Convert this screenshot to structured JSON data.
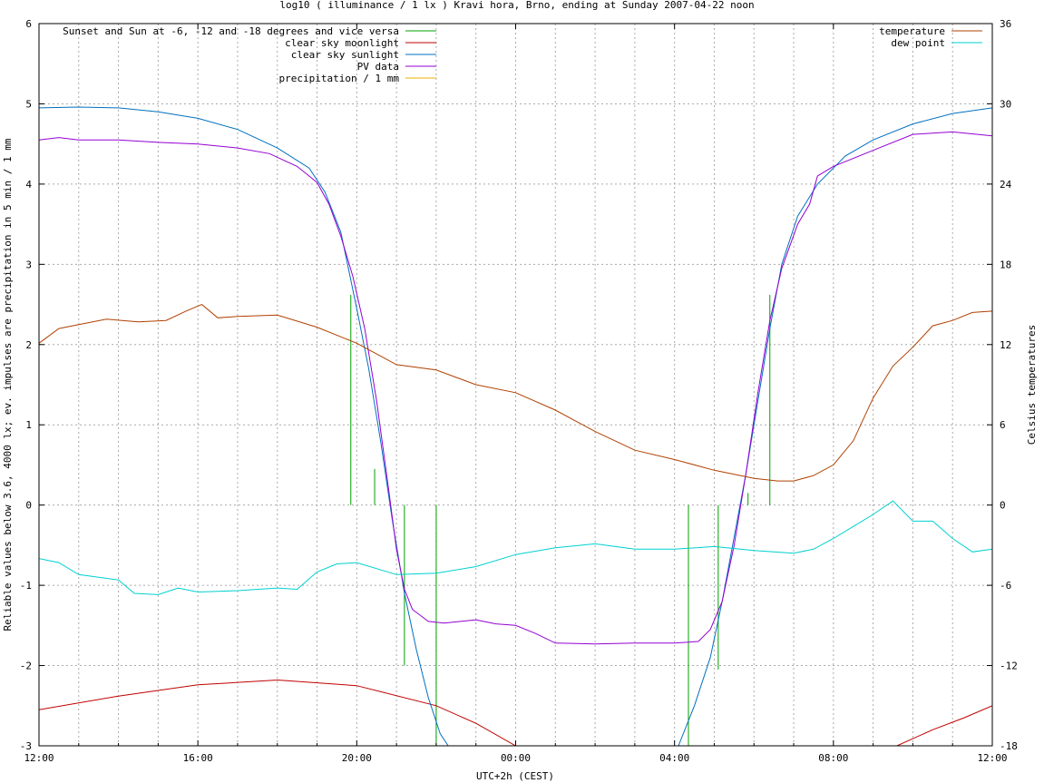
{
  "chart_data": {
    "type": "line",
    "title": "log10 ( illuminance / 1 lx ) Kravi hora, Brno, ending at Sunday 2007-04-22 noon",
    "xlabel": "UTC+2h (CEST)",
    "ylabel": "Reliable values below 3.6, 4000 lx; ev. impulses are precipitation in 5 min / 1 mm",
    "y2label": "Celsius temperatures",
    "xlim": [
      0,
      24
    ],
    "ylim": [
      -3,
      6
    ],
    "y2lim": [
      -18,
      36
    ],
    "x_ticks": [
      {
        "v": 0,
        "label": "12:00"
      },
      {
        "v": 4,
        "label": "16:00"
      },
      {
        "v": 8,
        "label": "20:00"
      },
      {
        "v": 12,
        "label": "00:00"
      },
      {
        "v": 16,
        "label": "04:00"
      },
      {
        "v": 20,
        "label": "08:00"
      },
      {
        "v": 24,
        "label": "12:00"
      }
    ],
    "y_ticks": [
      {
        "v": -3,
        "label": "-3"
      },
      {
        "v": -2,
        "label": "-2"
      },
      {
        "v": -1,
        "label": "-1"
      },
      {
        "v": 0,
        "label": "0"
      },
      {
        "v": 1,
        "label": "1"
      },
      {
        "v": 2,
        "label": "2"
      },
      {
        "v": 3,
        "label": "3"
      },
      {
        "v": 4,
        "label": "4"
      },
      {
        "v": 5,
        "label": "5"
      },
      {
        "v": 6,
        "label": "6"
      }
    ],
    "y2_ticks": [
      {
        "v": -18,
        "label": "-18"
      },
      {
        "v": -12,
        "label": "-12"
      },
      {
        "v": -6,
        "label": "-6"
      },
      {
        "v": 0,
        "label": "0"
      },
      {
        "v": 6,
        "label": "6"
      },
      {
        "v": 12,
        "label": "12"
      },
      {
        "v": 18,
        "label": "18"
      },
      {
        "v": 24,
        "label": "24"
      },
      {
        "v": 30,
        "label": "30"
      },
      {
        "v": 36,
        "label": "36"
      }
    ],
    "grid": true,
    "legend_left": [
      {
        "name": "Sunset and Sun at -6, -12 and -18 degrees and vice versa",
        "color": "#00a000"
      },
      {
        "name": "clear sky moonlight",
        "color": "#c00000"
      },
      {
        "name": "clear sky sunlight",
        "color": "#0070c0"
      },
      {
        "name": "PV data",
        "color": "#9400d3"
      },
      {
        "name": "precipitation / 1 mm",
        "color": "#e8b000"
      }
    ],
    "legend_right": [
      {
        "name": "temperature",
        "color": "#b04000"
      },
      {
        "name": "dew point",
        "color": "#00d0d0"
      }
    ],
    "series": [
      {
        "name": "Sunset and Sun at -6, -12 and -18 degrees and vice versa",
        "color": "#00a000",
        "style": "impulses",
        "axis": "y1",
        "impulses": [
          {
            "x": 7.85,
            "y": 2.62
          },
          {
            "x": 8.45,
            "y": 0.45
          },
          {
            "x": 9.2,
            "y": -2.0
          },
          {
            "x": 10.0,
            "y": -3.0
          },
          {
            "x": 16.35,
            "y": -3.0
          },
          {
            "x": 17.1,
            "y": -2.05
          },
          {
            "x": 17.85,
            "y": 0.15
          },
          {
            "x": 18.4,
            "y": 2.62
          }
        ]
      },
      {
        "name": "clear sky moonlight",
        "color": "#c00000",
        "axis": "y1",
        "points": [
          [
            0,
            -2.55
          ],
          [
            2,
            -2.38
          ],
          [
            4,
            -2.24
          ],
          [
            6,
            -2.18
          ],
          [
            8,
            -2.25
          ],
          [
            10,
            -2.5
          ],
          [
            11,
            -2.72
          ],
          [
            12,
            -3.0
          ],
          [
            21.6,
            -3.0
          ],
          [
            22.5,
            -2.8
          ],
          [
            23.3,
            -2.65
          ],
          [
            24,
            -2.5
          ]
        ]
      },
      {
        "name": "clear sky sunlight",
        "color": "#0070c0",
        "axis": "y1",
        "points": [
          [
            0,
            4.95
          ],
          [
            1,
            4.96
          ],
          [
            2,
            4.95
          ],
          [
            3,
            4.9
          ],
          [
            4,
            4.82
          ],
          [
            5,
            4.68
          ],
          [
            6,
            4.45
          ],
          [
            6.8,
            4.2
          ],
          [
            7.2,
            3.9
          ],
          [
            7.6,
            3.4
          ],
          [
            8.0,
            2.45
          ],
          [
            8.3,
            1.7
          ],
          [
            8.6,
            0.8
          ],
          [
            8.9,
            -0.2
          ],
          [
            9.2,
            -1.1
          ],
          [
            9.5,
            -1.8
          ],
          [
            9.8,
            -2.4
          ],
          [
            10.1,
            -2.85
          ],
          [
            10.3,
            -3.0
          ],
          [
            16.1,
            -3.0
          ],
          [
            16.5,
            -2.5
          ],
          [
            16.9,
            -1.9
          ],
          [
            17.2,
            -1.2
          ],
          [
            17.5,
            -0.4
          ],
          [
            17.8,
            0.4
          ],
          [
            18.1,
            1.3
          ],
          [
            18.4,
            2.2
          ],
          [
            18.7,
            3.0
          ],
          [
            19.1,
            3.6
          ],
          [
            19.6,
            4.0
          ],
          [
            20.3,
            4.35
          ],
          [
            21,
            4.55
          ],
          [
            22,
            4.75
          ],
          [
            23,
            4.88
          ],
          [
            24,
            4.95
          ]
        ]
      },
      {
        "name": "PV data",
        "color": "#9400d3",
        "axis": "y1",
        "points": [
          [
            0,
            4.55
          ],
          [
            0.5,
            4.58
          ],
          [
            1,
            4.55
          ],
          [
            2,
            4.55
          ],
          [
            3,
            4.52
          ],
          [
            4,
            4.5
          ],
          [
            5,
            4.45
          ],
          [
            5.8,
            4.38
          ],
          [
            6.5,
            4.22
          ],
          [
            6.8,
            4.1
          ],
          [
            7.0,
            4.02
          ],
          [
            7.3,
            3.75
          ],
          [
            7.6,
            3.35
          ],
          [
            7.9,
            2.85
          ],
          [
            8.2,
            2.2
          ],
          [
            8.5,
            1.3
          ],
          [
            8.8,
            0.2
          ],
          [
            9.0,
            -0.55
          ],
          [
            9.2,
            -1.05
          ],
          [
            9.4,
            -1.3
          ],
          [
            9.8,
            -1.45
          ],
          [
            10.2,
            -1.47
          ],
          [
            11,
            -1.43
          ],
          [
            11.5,
            -1.48
          ],
          [
            12,
            -1.5
          ],
          [
            12.5,
            -1.6
          ],
          [
            13,
            -1.72
          ],
          [
            14,
            -1.73
          ],
          [
            15,
            -1.72
          ],
          [
            16,
            -1.72
          ],
          [
            16.6,
            -1.7
          ],
          [
            16.9,
            -1.55
          ],
          [
            17.2,
            -1.2
          ],
          [
            17.5,
            -0.5
          ],
          [
            17.8,
            0.4
          ],
          [
            18.1,
            1.4
          ],
          [
            18.4,
            2.3
          ],
          [
            18.7,
            2.95
          ],
          [
            19.1,
            3.5
          ],
          [
            19.4,
            3.75
          ],
          [
            19.6,
            4.1
          ],
          [
            20,
            4.22
          ],
          [
            21,
            4.42
          ],
          [
            22,
            4.62
          ],
          [
            23,
            4.65
          ],
          [
            24,
            4.6
          ]
        ]
      },
      {
        "name": "precipitation / 1 mm",
        "color": "#e8b000",
        "axis": "y1",
        "points": [
          [
            0,
            0
          ],
          [
            24,
            0
          ]
        ]
      },
      {
        "name": "temperature",
        "color": "#b04000",
        "axis": "y2",
        "points": [
          [
            0,
            12.1
          ],
          [
            0.5,
            13.2
          ],
          [
            1,
            13.5
          ],
          [
            1.7,
            13.9
          ],
          [
            2.5,
            13.7
          ],
          [
            3.2,
            13.8
          ],
          [
            3.7,
            14.5
          ],
          [
            4.1,
            15.0
          ],
          [
            4.5,
            14.0
          ],
          [
            5,
            14.1
          ],
          [
            6,
            14.2
          ],
          [
            7,
            13.3
          ],
          [
            8,
            12.1
          ],
          [
            9,
            10.5
          ],
          [
            10,
            10.1
          ],
          [
            11,
            9.0
          ],
          [
            12,
            8.4
          ],
          [
            13,
            7.1
          ],
          [
            14,
            5.5
          ],
          [
            15,
            4.1
          ],
          [
            16,
            3.4
          ],
          [
            17,
            2.6
          ],
          [
            18,
            2.0
          ],
          [
            18.6,
            1.8
          ],
          [
            19,
            1.8
          ],
          [
            19.5,
            2.2
          ],
          [
            20,
            3.0
          ],
          [
            20.5,
            4.8
          ],
          [
            21,
            8.0
          ],
          [
            21.5,
            10.4
          ],
          [
            22,
            11.8
          ],
          [
            22.5,
            13.4
          ],
          [
            23,
            13.8
          ],
          [
            23.5,
            14.4
          ],
          [
            24,
            14.5
          ]
        ]
      },
      {
        "name": "dew point",
        "color": "#00d0d0",
        "axis": "y2",
        "points": [
          [
            0,
            -4.0
          ],
          [
            0.5,
            -4.3
          ],
          [
            1,
            -5.2
          ],
          [
            2,
            -5.6
          ],
          [
            2.4,
            -6.6
          ],
          [
            3,
            -6.7
          ],
          [
            3.5,
            -6.2
          ],
          [
            4,
            -6.5
          ],
          [
            5,
            -6.4
          ],
          [
            6,
            -6.2
          ],
          [
            6.5,
            -6.3
          ],
          [
            7,
            -5.0
          ],
          [
            7.5,
            -4.4
          ],
          [
            8,
            -4.3
          ],
          [
            9,
            -5.2
          ],
          [
            10,
            -5.1
          ],
          [
            11,
            -4.6
          ],
          [
            12,
            -3.7
          ],
          [
            13,
            -3.2
          ],
          [
            14,
            -2.9
          ],
          [
            15,
            -3.3
          ],
          [
            16,
            -3.3
          ],
          [
            17,
            -3.1
          ],
          [
            18,
            -3.4
          ],
          [
            19,
            -3.6
          ],
          [
            19.5,
            -3.3
          ],
          [
            20,
            -2.5
          ],
          [
            20.5,
            -1.6
          ],
          [
            21,
            -0.7
          ],
          [
            21.5,
            0.3
          ],
          [
            22,
            -1.2
          ],
          [
            22.5,
            -1.2
          ],
          [
            23,
            -2.5
          ],
          [
            23.5,
            -3.5
          ],
          [
            24,
            -3.3
          ]
        ]
      }
    ]
  }
}
